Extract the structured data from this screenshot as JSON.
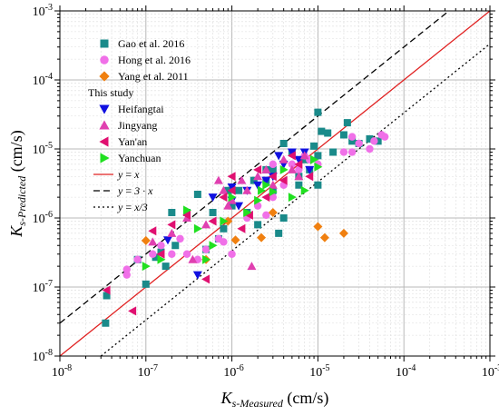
{
  "chart_data": {
    "type": "scatter",
    "xscale": "log",
    "yscale": "log",
    "xlim": [
      1e-08,
      0.001
    ],
    "ylim": [
      1e-08,
      0.001
    ],
    "grid": true,
    "legend_position": "top-left",
    "xlabel": {
      "main": "K",
      "sub": "s-Measured",
      "unit": " (cm/s)"
    },
    "ylabel": {
      "main": "K",
      "sub": "s-Predicted",
      "unit": " (cm/s)"
    },
    "x_ticks": [
      {
        "v": 1e-08,
        "base": "10",
        "exp": "-8"
      },
      {
        "v": 1e-07,
        "base": "10",
        "exp": "-7"
      },
      {
        "v": 1e-06,
        "base": "10",
        "exp": "-6"
      },
      {
        "v": 1e-05,
        "base": "10",
        "exp": "-5"
      },
      {
        "v": 0.0001,
        "base": "10",
        "exp": "-4"
      },
      {
        "v": 0.001,
        "base": "10",
        "exp": "-3"
      }
    ],
    "y_ticks": [
      {
        "v": 1e-08,
        "base": "10",
        "exp": "-8"
      },
      {
        "v": 1e-07,
        "base": "10",
        "exp": "-7"
      },
      {
        "v": 1e-06,
        "base": "10",
        "exp": "-6"
      },
      {
        "v": 1e-05,
        "base": "10",
        "exp": "-5"
      },
      {
        "v": 0.0001,
        "base": "10",
        "exp": "-4"
      },
      {
        "v": 0.001,
        "base": "10",
        "exp": "-3"
      }
    ],
    "legend_heading": "This study",
    "series": [
      {
        "name": "Gao et al. 2016",
        "marker": "square",
        "color": "#1a8a8a",
        "group": "ref",
        "points": [
          [
            3.4e-08,
            3e-08
          ],
          [
            3.5e-08,
            7.5e-08
          ],
          [
            8e-08,
            2.5e-07
          ],
          [
            1e-07,
            1.1e-07
          ],
          [
            1.3e-07,
            2.7e-07
          ],
          [
            1.5e-07,
            3.2e-07
          ],
          [
            1.7e-07,
            2e-07
          ],
          [
            2e-07,
            1.2e-06
          ],
          [
            2.2e-07,
            4e-07
          ],
          [
            3e-07,
            1.2e-06
          ],
          [
            4e-07,
            2.2e-06
          ],
          [
            5e-07,
            3.5e-07
          ],
          [
            6e-07,
            1.2e-06
          ],
          [
            7e-07,
            5e-07
          ],
          [
            8e-07,
            7e-07
          ],
          [
            9e-07,
            2.5e-06
          ],
          [
            1e-06,
            1.5e-06
          ],
          [
            1.2e-06,
            2.5e-06
          ],
          [
            1.5e-06,
            1.2e-06
          ],
          [
            1.8e-06,
            3.5e-06
          ],
          [
            2e-06,
            8e-07
          ],
          [
            2.5e-06,
            5e-06
          ],
          [
            3e-06,
            2.5e-06
          ],
          [
            3.5e-06,
            6e-07
          ],
          [
            4e-06,
            1e-06
          ],
          [
            4e-06,
            1.2e-05
          ],
          [
            5e-06,
            9e-06
          ],
          [
            6e-06,
            4e-06
          ],
          [
            7e-06,
            7e-06
          ],
          [
            8e-06,
            5e-06
          ],
          [
            9e-06,
            1.1e-05
          ],
          [
            1e-05,
            3.4e-05
          ],
          [
            1e-05,
            8e-06
          ],
          [
            1.1e-05,
            1.8e-05
          ],
          [
            1.3e-05,
            1.7e-05
          ],
          [
            1.5e-05,
            9e-06
          ],
          [
            2e-05,
            1.6e-05
          ],
          [
            2.2e-05,
            2.4e-05
          ],
          [
            2.5e-05,
            1.3e-05
          ],
          [
            3e-05,
            1.2e-05
          ],
          [
            4e-05,
            1.4e-05
          ],
          [
            5e-05,
            1.3e-05
          ],
          [
            1e-05,
            3e-06
          ],
          [
            6e-06,
            3e-06
          ],
          [
            3e-06,
            5e-06
          ],
          [
            2.5e-06,
            3.5e-06
          ]
        ]
      },
      {
        "name": "Hong et al. 2016",
        "marker": "circle",
        "color": "#f070e8",
        "group": "ref",
        "points": [
          [
            6e-08,
            1.5e-07
          ],
          [
            6e-08,
            1.8e-07
          ],
          [
            8e-08,
            2.5e-07
          ],
          [
            1.2e-07,
            3e-07
          ],
          [
            1.5e-07,
            4e-07
          ],
          [
            2e-07,
            3e-07
          ],
          [
            2.5e-07,
            5e-07
          ],
          [
            3e-07,
            3e-07
          ],
          [
            4e-07,
            2.5e-07
          ],
          [
            5e-07,
            3.5e-07
          ],
          [
            7e-07,
            5e-07
          ],
          [
            8e-07,
            4.5e-07
          ],
          [
            1e-06,
            3e-07
          ],
          [
            1.5e-06,
            1e-06
          ],
          [
            2e-06,
            1.5e-06
          ],
          [
            2.5e-06,
            1.1e-06
          ],
          [
            3e-06,
            2e-06
          ],
          [
            3e-06,
            6e-06
          ],
          [
            4e-06,
            3e-06
          ],
          [
            5e-06,
            6e-06
          ],
          [
            6e-06,
            5e-06
          ],
          [
            7e-06,
            8e-06
          ],
          [
            8e-06,
            7e-06
          ],
          [
            1e-05,
            6e-06
          ],
          [
            2e-05,
            9e-06
          ],
          [
            2.5e-05,
            1.5e-05
          ],
          [
            3e-05,
            1.2e-05
          ],
          [
            4e-05,
            1e-05
          ],
          [
            4.5e-05,
            1.3e-05
          ],
          [
            5.5e-05,
            1.6e-05
          ],
          [
            6e-05,
            1.5e-05
          ],
          [
            2.5e-05,
            9e-06
          ]
        ]
      },
      {
        "name": "Yang et al. 2011",
        "marker": "diamond",
        "color": "#f08010",
        "group": "ref",
        "points": [
          [
            1e-07,
            4.7e-07
          ],
          [
            5e-07,
            2.5e-07
          ],
          [
            9e-07,
            9e-07
          ],
          [
            1.1e-06,
            4.8e-07
          ],
          [
            2.2e-06,
            5.2e-07
          ],
          [
            3e-06,
            1.2e-06
          ],
          [
            1e-05,
            7.5e-07
          ],
          [
            1.2e-05,
            5.2e-07
          ],
          [
            2e-05,
            6e-07
          ]
        ]
      },
      {
        "name": "Heifangtai",
        "marker": "triangle-down",
        "color": "#1010e0",
        "group": "study",
        "points": [
          [
            1.8e-07,
            4.8e-07
          ],
          [
            4e-07,
            1.5e-07
          ],
          [
            6e-07,
            2e-06
          ],
          [
            1e-06,
            1.8e-06
          ],
          [
            1.5e-06,
            2.5e-06
          ],
          [
            2e-06,
            3e-06
          ],
          [
            3e-06,
            4e-06
          ],
          [
            3.5e-06,
            8e-06
          ],
          [
            4e-06,
            6e-06
          ],
          [
            5e-06,
            9e-06
          ],
          [
            6e-06,
            7e-06
          ],
          [
            7e-06,
            9e-06
          ],
          [
            8e-06,
            5e-06
          ],
          [
            1e-06,
            2.8e-06
          ],
          [
            2.5e-06,
            3.5e-06
          ],
          [
            1.2e-06,
            1.5e-06
          ]
        ]
      },
      {
        "name": "Jingyang",
        "marker": "triangle-up",
        "color": "#e040b0",
        "group": "study",
        "points": [
          [
            2e-07,
            6e-07
          ],
          [
            3e-07,
            1e-06
          ],
          [
            3.5e-07,
            2.5e-07
          ],
          [
            5e-07,
            8e-07
          ],
          [
            7e-07,
            3.5e-06
          ],
          [
            8e-07,
            2.5e-06
          ],
          [
            1e-06,
            1.8e-06
          ],
          [
            1.3e-06,
            3.5e-06
          ],
          [
            1.5e-06,
            2.5e-06
          ],
          [
            1.7e-06,
            2e-07
          ],
          [
            2e-06,
            4e-06
          ],
          [
            2.5e-06,
            5e-06
          ],
          [
            3e-06,
            3e-06
          ],
          [
            4e-06,
            7e-06
          ],
          [
            5e-06,
            5e-06
          ],
          [
            6e-06,
            4e-06
          ],
          [
            7e-06,
            8e-06
          ],
          [
            1.2e-07,
            4.5e-07
          ],
          [
            9e-07,
            1.5e-06
          ]
        ]
      },
      {
        "name": "Yan'an",
        "marker": "triangle-left",
        "color": "#e01070",
        "group": "study",
        "points": [
          [
            3.5e-08,
            9e-08
          ],
          [
            7e-08,
            4.5e-08
          ],
          [
            1.2e-07,
            6.5e-07
          ],
          [
            1.5e-07,
            3e-07
          ],
          [
            2e-07,
            8e-07
          ],
          [
            3e-07,
            1.1e-06
          ],
          [
            5e-07,
            1.3e-07
          ],
          [
            6e-07,
            9e-07
          ],
          [
            8e-07,
            2e-06
          ],
          [
            1e-06,
            4e-06
          ],
          [
            1.3e-06,
            7e-07
          ],
          [
            1.6e-06,
            1.1e-06
          ],
          [
            2e-06,
            5e-06
          ],
          [
            2.5e-06,
            2e-06
          ],
          [
            3e-06,
            4e-06
          ],
          [
            4e-06,
            3.5e-06
          ],
          [
            5e-06,
            8e-06
          ],
          [
            6e-06,
            6e-06
          ],
          [
            8e-06,
            4e-06
          ],
          [
            1e-06,
            2.5e-06
          ]
        ]
      },
      {
        "name": "Yanchuan",
        "marker": "triangle-right",
        "color": "#20e020",
        "group": "study",
        "points": [
          [
            1e-07,
            2e-07
          ],
          [
            1.5e-07,
            2.5e-07
          ],
          [
            3e-07,
            1.3e-06
          ],
          [
            4e-07,
            7e-07
          ],
          [
            5e-07,
            2.5e-07
          ],
          [
            6e-07,
            4e-07
          ],
          [
            8e-07,
            9e-07
          ],
          [
            1e-06,
            2e-06
          ],
          [
            1.5e-06,
            1.2e-06
          ],
          [
            2e-06,
            1.8e-06
          ],
          [
            2.5e-06,
            3e-06
          ],
          [
            3e-06,
            2.4e-06
          ],
          [
            4e-06,
            5e-06
          ],
          [
            5e-06,
            2e-06
          ],
          [
            7e-06,
            2.5e-06
          ],
          [
            9e-06,
            7e-06
          ],
          [
            1e-05,
            5.5e-06
          ],
          [
            2.2e-06,
            2.5e-06
          ]
        ]
      }
    ],
    "reference_lines": [
      {
        "label_lhs": "y",
        "label_rhs": "x",
        "factor": 1,
        "style": "solid",
        "color": "#e02020"
      },
      {
        "label_lhs": "y",
        "label_rhs": "3 · x",
        "factor": 3,
        "style": "dashed",
        "color": "#000000"
      },
      {
        "label_lhs": "y",
        "label_rhs": "x/3",
        "factor": 0.3333333,
        "style": "dotted",
        "color": "#000000"
      }
    ]
  }
}
